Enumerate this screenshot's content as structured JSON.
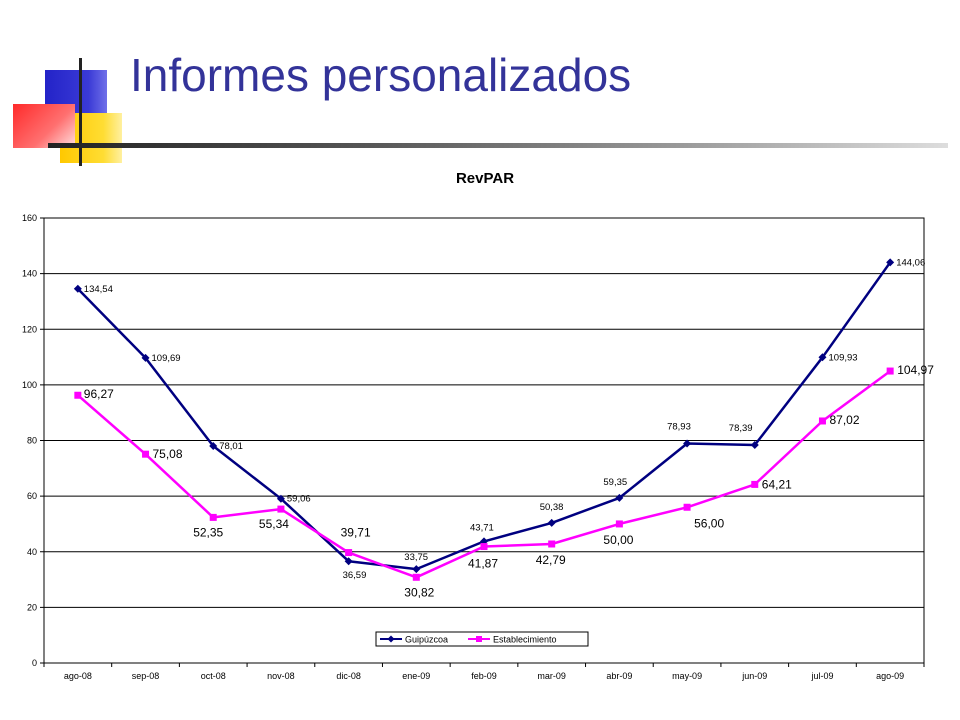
{
  "slide": {
    "title": "Informes personalizados",
    "accent_colors": {
      "blue": "#3333cc",
      "yellow": "#ffcc00",
      "red": "#ff3333",
      "title": "#333399"
    }
  },
  "chart_data": {
    "type": "line",
    "title": "RevPAR",
    "xlabel": "",
    "ylabel": "",
    "categories": [
      "ago-08",
      "sep-08",
      "oct-08",
      "nov-08",
      "dic-08",
      "ene-09",
      "feb-09",
      "mar-09",
      "abr-09",
      "may-09",
      "jun-09",
      "jul-09",
      "ago-09"
    ],
    "ylim": [
      0,
      160
    ],
    "yticks": [
      0,
      20,
      40,
      60,
      80,
      100,
      120,
      140,
      160
    ],
    "grid": true,
    "legend_position": "bottom-center",
    "series": [
      {
        "name": "Guipúzcoa",
        "color": "#000080",
        "marker": "diamond",
        "values": [
          134.54,
          109.69,
          78.01,
          59.06,
          36.59,
          33.75,
          43.71,
          50.38,
          59.35,
          78.93,
          78.39,
          109.93,
          144.06
        ],
        "labels": [
          "134,54",
          "109,69",
          "78,01",
          "59,06",
          "36,59",
          "33,75",
          "43,71",
          "50,38",
          "59,35",
          "78,93",
          "78,39",
          "109,93",
          "144,06"
        ]
      },
      {
        "name": "Establecimiento",
        "color": "#ff00ff",
        "marker": "square",
        "values": [
          96.27,
          75.08,
          52.35,
          55.34,
          39.71,
          30.82,
          41.87,
          42.79,
          50.0,
          56.0,
          64.21,
          87.02,
          104.97
        ],
        "labels": [
          "96,27",
          "75,08",
          "52,35",
          "55,34",
          "39,71",
          "30,82",
          "41,87",
          "42,79",
          "50,00",
          "56,00",
          "64,21",
          "87,02",
          "104,97"
        ]
      }
    ]
  }
}
